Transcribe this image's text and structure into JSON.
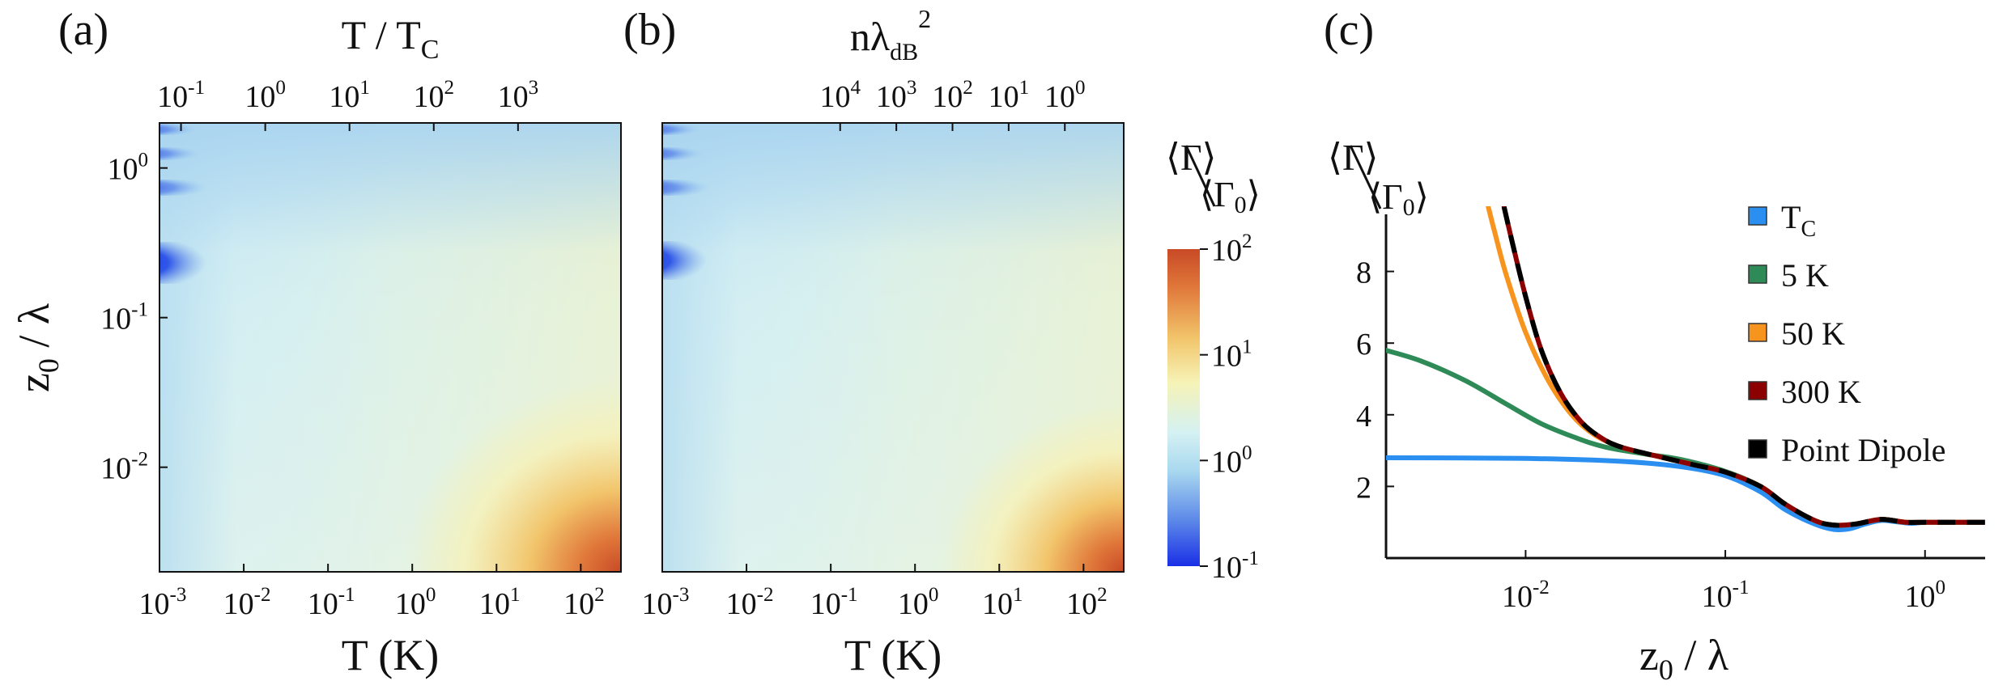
{
  "chart_data": [
    {
      "panel_label": "(a)",
      "type": "heatmap",
      "x_axis": {
        "label_base": "T (K)",
        "scale": "log",
        "range": [
          0.001,
          300
        ],
        "ticks": [
          {
            "value": 0.001,
            "base": "10",
            "exp": "-3"
          },
          {
            "value": 0.01,
            "base": "10",
            "exp": "-2"
          },
          {
            "value": 0.1,
            "base": "10",
            "exp": "-1"
          },
          {
            "value": 1,
            "base": "10",
            "exp": "0"
          },
          {
            "value": 10,
            "base": "10",
            "exp": "1"
          },
          {
            "value": 100,
            "base": "10",
            "exp": "2"
          }
        ]
      },
      "top_axis": {
        "label_main": "T / T",
        "label_sub": "C",
        "scale": "log",
        "ticks": [
          {
            "value": 0.1,
            "base": "10",
            "exp": "-1"
          },
          {
            "value": 1,
            "base": "10",
            "exp": "0"
          },
          {
            "value": 10,
            "base": "10",
            "exp": "1"
          },
          {
            "value": 100,
            "base": "10",
            "exp": "2"
          },
          {
            "value": 1000,
            "base": "10",
            "exp": "3"
          }
        ]
      },
      "y_axis": {
        "label_main": "z",
        "label_sub": "0",
        "label_rest": " / λ",
        "scale": "log",
        "range": [
          0.002,
          2
        ],
        "ticks": [
          {
            "value": 1,
            "base": "10",
            "exp": "0"
          },
          {
            "value": 0.1,
            "base": "10",
            "exp": "-1"
          },
          {
            "value": 0.01,
            "base": "10",
            "exp": "-2"
          }
        ]
      }
    },
    {
      "panel_label": "(b)",
      "type": "heatmap",
      "x_axis": {
        "label_base": "T (K)",
        "scale": "log",
        "range": [
          0.001,
          300
        ],
        "ticks": [
          {
            "value": 0.001,
            "base": "10",
            "exp": "-3"
          },
          {
            "value": 0.01,
            "base": "10",
            "exp": "-2"
          },
          {
            "value": 0.1,
            "base": "10",
            "exp": "-1"
          },
          {
            "value": 1,
            "base": "10",
            "exp": "0"
          },
          {
            "value": 10,
            "base": "10",
            "exp": "1"
          },
          {
            "value": 100,
            "base": "10",
            "exp": "2"
          }
        ]
      },
      "top_axis": {
        "label_main": "nλ",
        "label_sub": "dB",
        "label_sup": "2",
        "scale": "log",
        "ticks": [
          {
            "value": 10000,
            "base": "10",
            "exp": "4"
          },
          {
            "value": 1000,
            "base": "10",
            "exp": "3"
          },
          {
            "value": 100,
            "base": "10",
            "exp": "2"
          },
          {
            "value": 10,
            "base": "10",
            "exp": "1"
          },
          {
            "value": 1,
            "base": "10",
            "exp": "0"
          }
        ]
      },
      "colorbar": {
        "label_num": "⟨Γ⟩",
        "label_den_main": "⟨Γ",
        "label_den_sub": "0",
        "label_den_end": "⟩",
        "scale": "log",
        "range": [
          0.1,
          100
        ],
        "ticks": [
          {
            "value": 100,
            "base": "10",
            "exp": "2"
          },
          {
            "value": 10,
            "base": "10",
            "exp": "1"
          },
          {
            "value": 1,
            "base": "10",
            "exp": "0"
          },
          {
            "value": 0.1,
            "base": "10",
            "exp": "-1"
          }
        ],
        "colors": [
          "#1a2fe6",
          "#5a86e8",
          "#a9d8ef",
          "#d4f1f3",
          "#f6f3b6",
          "#f2c46a",
          "#e0773a",
          "#c84a26"
        ]
      }
    },
    {
      "panel_label": "(c)",
      "type": "line",
      "x_axis": {
        "label_main": "z",
        "label_sub": "0",
        "label_rest": " / λ",
        "scale": "log",
        "range": [
          0.002,
          2
        ],
        "ticks": [
          {
            "value": 0.01,
            "base": "10",
            "exp": "-2"
          },
          {
            "value": 0.1,
            "base": "10",
            "exp": "-1"
          },
          {
            "value": 1,
            "base": "10",
            "exp": "0"
          }
        ]
      },
      "y_axis": {
        "label_num": "⟨Γ⟩",
        "label_den_main": "⟨Γ",
        "label_den_sub": "0",
        "label_den_end": "⟩",
        "scale": "linear",
        "range": [
          0,
          10
        ],
        "ticks": [
          2,
          4,
          6,
          8
        ]
      },
      "series": [
        {
          "name": "T",
          "name_sub": "C",
          "color": "#2a8ff0",
          "dash": false,
          "x": [
            0.002,
            0.01,
            0.03,
            0.06,
            0.1,
            0.15,
            0.2,
            0.28,
            0.35,
            0.42,
            0.5,
            0.6,
            0.7,
            0.85,
            1.0,
            1.3,
            2.0
          ],
          "y": [
            2.8,
            2.78,
            2.7,
            2.55,
            2.3,
            1.85,
            1.35,
            0.95,
            0.8,
            0.82,
            0.95,
            1.05,
            1.02,
            0.97,
            1.0,
            1.0,
            1.0
          ]
        },
        {
          "name": "5 K",
          "color": "#2e8b57",
          "dash": false,
          "x": [
            0.002,
            0.003,
            0.005,
            0.008,
            0.012,
            0.018,
            0.025,
            0.04,
            0.06,
            0.1,
            0.15,
            0.2,
            0.28,
            0.35,
            0.45,
            0.6,
            0.8,
            1.0,
            2.0
          ],
          "y": [
            5.8,
            5.5,
            4.95,
            4.3,
            3.75,
            3.35,
            3.1,
            2.9,
            2.75,
            2.42,
            2.0,
            1.5,
            1.05,
            0.92,
            0.95,
            1.08,
            1.0,
            1.0,
            1.0
          ]
        },
        {
          "name": "50 K",
          "color": "#f7941d",
          "dash": false,
          "x": [
            0.0065,
            0.007,
            0.008,
            0.01,
            0.013,
            0.017,
            0.022,
            0.03,
            0.045,
            0.07,
            0.1,
            0.15,
            0.2,
            0.28,
            0.35,
            0.45,
            0.6,
            0.8,
            1.0,
            2.0
          ],
          "y": [
            9.8,
            9.1,
            7.9,
            6.3,
            4.95,
            4.0,
            3.45,
            3.1,
            2.85,
            2.6,
            2.4,
            2.0,
            1.5,
            1.05,
            0.92,
            0.95,
            1.08,
            1.0,
            1.0,
            1.0
          ]
        },
        {
          "name": "300 K",
          "color": "#8b0000",
          "dash": false,
          "x": [
            0.0078,
            0.0085,
            0.01,
            0.012,
            0.015,
            0.019,
            0.024,
            0.03,
            0.045,
            0.07,
            0.1,
            0.15,
            0.2,
            0.28,
            0.35,
            0.45,
            0.6,
            0.8,
            1.0,
            2.0
          ],
          "y": [
            9.8,
            8.9,
            7.3,
            5.8,
            4.6,
            3.8,
            3.35,
            3.1,
            2.85,
            2.6,
            2.4,
            2.0,
            1.5,
            1.05,
            0.92,
            0.95,
            1.08,
            1.0,
            1.0,
            1.0
          ]
        },
        {
          "name": "Point Dipole",
          "color": "#000000",
          "dash": true,
          "x": [
            0.0078,
            0.0085,
            0.01,
            0.012,
            0.015,
            0.019,
            0.024,
            0.03,
            0.045,
            0.07,
            0.1,
            0.15,
            0.2,
            0.28,
            0.35,
            0.45,
            0.6,
            0.8,
            1.0,
            2.0
          ],
          "y": [
            9.8,
            8.9,
            7.3,
            5.8,
            4.6,
            3.8,
            3.35,
            3.1,
            2.85,
            2.6,
            2.4,
            2.0,
            1.5,
            1.05,
            0.92,
            0.95,
            1.08,
            1.0,
            1.0,
            1.0
          ]
        }
      ],
      "legend_placement": "top-right"
    }
  ]
}
